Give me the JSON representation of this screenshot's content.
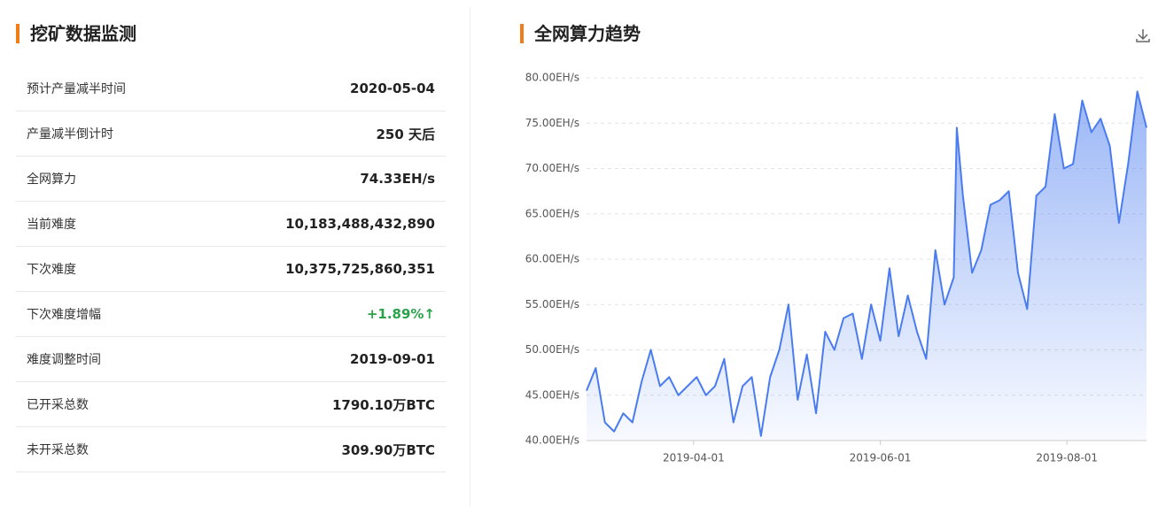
{
  "left_panel": {
    "title": "挖矿数据监测",
    "table": {
      "rows": [
        [
          "预计产量减半时间",
          "2020-05-04"
        ],
        [
          "产量减半倒计时",
          "250 天后"
        ],
        [
          "全网算力",
          "74.33EH/s"
        ],
        [
          "当前难度",
          "10,183,488,432,890"
        ],
        [
          "下次难度",
          "10,375,725,860,351"
        ],
        [
          "下次难度增幅",
          "+1.89%↑"
        ],
        [
          "难度调整时间",
          "2019-09-01"
        ],
        [
          "已开采总数",
          "1790.10万BTC"
        ],
        [
          "未开采总数",
          "309.90万BTC"
        ]
      ]
    }
  },
  "chart_data": {
    "type": "line",
    "title": "全网算力趋势",
    "color": "#4a7cf0",
    "grid": true,
    "x": [
      "2019-02-25",
      "2019-02-28",
      "2019-03-03",
      "2019-03-06",
      "2019-03-09",
      "2019-03-12",
      "2019-03-15",
      "2019-03-18",
      "2019-03-21",
      "2019-03-24",
      "2019-03-27",
      "2019-03-30",
      "2019-04-02",
      "2019-04-05",
      "2019-04-08",
      "2019-04-11",
      "2019-04-14",
      "2019-04-17",
      "2019-04-20",
      "2019-04-23",
      "2019-04-26",
      "2019-04-29",
      "2019-05-02",
      "2019-05-05",
      "2019-05-08",
      "2019-05-11",
      "2019-05-14",
      "2019-05-17",
      "2019-05-20",
      "2019-05-23",
      "2019-05-26",
      "2019-05-29",
      "2019-06-01",
      "2019-06-04",
      "2019-06-07",
      "2019-06-10",
      "2019-06-13",
      "2019-06-16",
      "2019-06-19",
      "2019-06-22",
      "2019-06-25",
      "2019-06-26",
      "2019-06-28",
      "2019-07-01",
      "2019-07-04",
      "2019-07-07",
      "2019-07-10",
      "2019-07-13",
      "2019-07-16",
      "2019-07-19",
      "2019-07-22",
      "2019-07-25",
      "2019-07-28",
      "2019-07-31",
      "2019-08-03",
      "2019-08-06",
      "2019-08-09",
      "2019-08-12",
      "2019-08-15",
      "2019-08-18",
      "2019-08-21",
      "2019-08-24",
      "2019-08-27"
    ],
    "values": [
      45.5,
      48,
      42,
      41,
      43,
      42,
      46.5,
      50,
      46,
      47,
      45,
      46,
      47,
      45,
      46,
      49,
      42,
      46,
      47,
      40.5,
      47,
      50,
      55,
      44.5,
      49.5,
      43,
      52,
      50,
      53.5,
      54,
      49,
      55,
      51,
      59,
      51.5,
      56,
      52,
      49,
      61,
      55,
      58,
      74.5,
      67,
      58.5,
      61,
      66,
      66.5,
      67.5,
      58.5,
      54.5,
      67,
      68,
      76,
      70,
      70.5,
      77.5,
      74,
      75.5,
      72.5,
      64,
      70.5,
      78.5,
      74.5
    ],
    "xlim": [
      "2019-02-25",
      "2019-08-27"
    ],
    "xticks": [
      "2019-04-01",
      "2019-06-01",
      "2019-08-01"
    ],
    "ylim": [
      40,
      80
    ],
    "yticks": [
      {
        "value": 40,
        "label": "40.00EH/s"
      },
      {
        "value": 45,
        "label": "45.00EH/s"
      },
      {
        "value": 50,
        "label": "50.00EH/s"
      },
      {
        "value": 55,
        "label": "55.00EH/s"
      },
      {
        "value": 60,
        "label": "60.00EH/s"
      },
      {
        "value": 65,
        "label": "65.00EH/s"
      },
      {
        "value": 70,
        "label": "70.00EH/s"
      },
      {
        "value": 75,
        "label": "75.00EH/s"
      },
      {
        "value": 80,
        "label": "80.00EH/s"
      }
    ]
  }
}
